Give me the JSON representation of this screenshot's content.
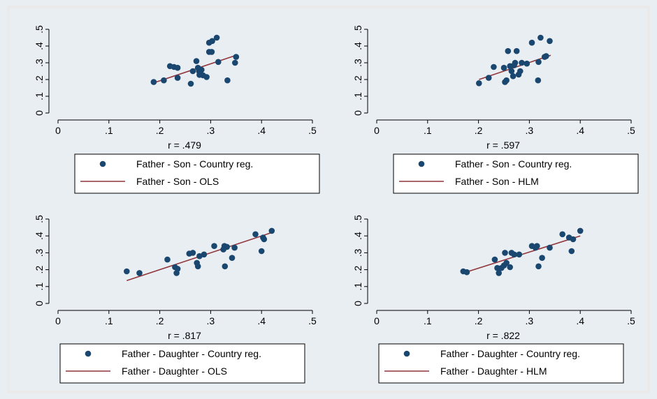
{
  "chart_data": [
    {
      "type": "scatter",
      "r_label": "r = .479",
      "xlim": [
        0,
        0.5
      ],
      "ylim": [
        0,
        0.5
      ],
      "x_ticks": [
        "0",
        ".1",
        ".2",
        ".3",
        ".4",
        ".5"
      ],
      "y_ticks": [
        "0",
        ".1",
        ".2",
        ".3",
        ".4",
        ".5"
      ],
      "legend_position": "bottom",
      "series": [
        {
          "name": "Father - Son - Country reg.",
          "kind": "scatter",
          "color": "#1a476f",
          "points": [
            [
              0.188,
              0.185
            ],
            [
              0.208,
              0.195
            ],
            [
              0.22,
              0.28
            ],
            [
              0.228,
              0.275
            ],
            [
              0.235,
              0.27
            ],
            [
              0.235,
              0.21
            ],
            [
              0.261,
              0.175
            ],
            [
              0.265,
              0.25
            ],
            [
              0.272,
              0.31
            ],
            [
              0.275,
              0.27
            ],
            [
              0.277,
              0.25
            ],
            [
              0.278,
              0.228
            ],
            [
              0.28,
              0.235
            ],
            [
              0.282,
              0.258
            ],
            [
              0.285,
              0.225
            ],
            [
              0.292,
              0.215
            ],
            [
              0.297,
              0.42
            ],
            [
              0.297,
              0.365
            ],
            [
              0.302,
              0.365
            ],
            [
              0.303,
              0.43
            ],
            [
              0.312,
              0.45
            ],
            [
              0.315,
              0.305
            ],
            [
              0.333,
              0.195
            ],
            [
              0.348,
              0.3
            ],
            [
              0.35,
              0.335
            ]
          ]
        },
        {
          "name": "Father - Son - OLS",
          "kind": "line",
          "color": "#90353b",
          "points": [
            [
              0.188,
              0.18
            ],
            [
              0.35,
              0.345
            ]
          ]
        }
      ]
    },
    {
      "type": "scatter",
      "r_label": "r = .597",
      "xlim": [
        0,
        0.5
      ],
      "ylim": [
        0,
        0.5
      ],
      "x_ticks": [
        "0",
        ".1",
        ".2",
        ".3",
        ".4",
        ".5"
      ],
      "y_ticks": [
        "0",
        ".1",
        ".2",
        ".3",
        ".4",
        ".5"
      ],
      "legend_position": "bottom",
      "series": [
        {
          "name": "Father - Son - Country reg.",
          "kind": "scatter",
          "color": "#1a476f",
          "points": [
            [
              0.201,
              0.178
            ],
            [
              0.22,
              0.21
            ],
            [
              0.23,
              0.275
            ],
            [
              0.25,
              0.27
            ],
            [
              0.252,
              0.185
            ],
            [
              0.255,
              0.195
            ],
            [
              0.258,
              0.37
            ],
            [
              0.262,
              0.28
            ],
            [
              0.265,
              0.25
            ],
            [
              0.268,
              0.22
            ],
            [
              0.27,
              0.285
            ],
            [
              0.272,
              0.3
            ],
            [
              0.275,
              0.37
            ],
            [
              0.279,
              0.23
            ],
            [
              0.282,
              0.25
            ],
            [
              0.285,
              0.3
            ],
            [
              0.295,
              0.295
            ],
            [
              0.305,
              0.42
            ],
            [
              0.317,
              0.195
            ],
            [
              0.318,
              0.305
            ],
            [
              0.322,
              0.45
            ],
            [
              0.33,
              0.335
            ],
            [
              0.333,
              0.34
            ],
            [
              0.34,
              0.43
            ]
          ]
        },
        {
          "name": "Father - Son - HLM",
          "kind": "line",
          "color": "#90353b",
          "points": [
            [
              0.201,
              0.2
            ],
            [
              0.342,
              0.345
            ]
          ]
        }
      ]
    },
    {
      "type": "scatter",
      "r_label": "r = .817",
      "xlim": [
        0,
        0.5
      ],
      "ylim": [
        0,
        0.5
      ],
      "x_ticks": [
        "0",
        ".1",
        ".2",
        ".3",
        ".4",
        ".5"
      ],
      "y_ticks": [
        "0",
        ".1",
        ".2",
        ".3",
        ".4",
        ".5"
      ],
      "legend_position": "bottom",
      "series": [
        {
          "name": "Father - Daughter - Country reg.",
          "kind": "scatter",
          "color": "#1a476f",
          "points": [
            [
              0.135,
              0.19
            ],
            [
              0.16,
              0.18
            ],
            [
              0.215,
              0.26
            ],
            [
              0.23,
              0.215
            ],
            [
              0.233,
              0.18
            ],
            [
              0.235,
              0.205
            ],
            [
              0.258,
              0.295
            ],
            [
              0.265,
              0.3
            ],
            [
              0.273,
              0.24
            ],
            [
              0.275,
              0.22
            ],
            [
              0.278,
              0.28
            ],
            [
              0.287,
              0.29
            ],
            [
              0.307,
              0.34
            ],
            [
              0.325,
              0.32
            ],
            [
              0.327,
              0.34
            ],
            [
              0.328,
              0.22
            ],
            [
              0.332,
              0.335
            ],
            [
              0.342,
              0.27
            ],
            [
              0.347,
              0.33
            ],
            [
              0.388,
              0.41
            ],
            [
              0.4,
              0.31
            ],
            [
              0.403,
              0.39
            ],
            [
              0.405,
              0.38
            ],
            [
              0.42,
              0.43
            ]
          ]
        },
        {
          "name": "Father - Daughter - OLS",
          "kind": "line",
          "color": "#90353b",
          "points": [
            [
              0.135,
              0.135
            ],
            [
              0.42,
              0.42
            ]
          ]
        }
      ]
    },
    {
      "type": "scatter",
      "r_label": "r = .822",
      "xlim": [
        0,
        0.5
      ],
      "ylim": [
        0,
        0.5
      ],
      "x_ticks": [
        "0",
        ".1",
        ".2",
        ".3",
        ".4",
        ".5"
      ],
      "y_ticks": [
        "0",
        ".1",
        ".2",
        ".3",
        ".4",
        ".5"
      ],
      "legend_position": "bottom",
      "series": [
        {
          "name": "Father - Daughter - Country reg.",
          "kind": "scatter",
          "color": "#1a476f",
          "points": [
            [
              0.17,
              0.19
            ],
            [
              0.177,
              0.185
            ],
            [
              0.232,
              0.26
            ],
            [
              0.237,
              0.21
            ],
            [
              0.24,
              0.18
            ],
            [
              0.245,
              0.21
            ],
            [
              0.25,
              0.225
            ],
            [
              0.252,
              0.3
            ],
            [
              0.255,
              0.24
            ],
            [
              0.262,
              0.215
            ],
            [
              0.265,
              0.3
            ],
            [
              0.27,
              0.29
            ],
            [
              0.28,
              0.29
            ],
            [
              0.305,
              0.34
            ],
            [
              0.312,
              0.33
            ],
            [
              0.315,
              0.34
            ],
            [
              0.318,
              0.22
            ],
            [
              0.325,
              0.27
            ],
            [
              0.34,
              0.33
            ],
            [
              0.365,
              0.41
            ],
            [
              0.378,
              0.39
            ],
            [
              0.383,
              0.31
            ],
            [
              0.386,
              0.38
            ],
            [
              0.4,
              0.43
            ]
          ]
        },
        {
          "name": "Father - Daughter - HLM",
          "kind": "line",
          "color": "#90353b",
          "points": [
            [
              0.17,
              0.18
            ],
            [
              0.4,
              0.4
            ]
          ]
        }
      ]
    }
  ]
}
